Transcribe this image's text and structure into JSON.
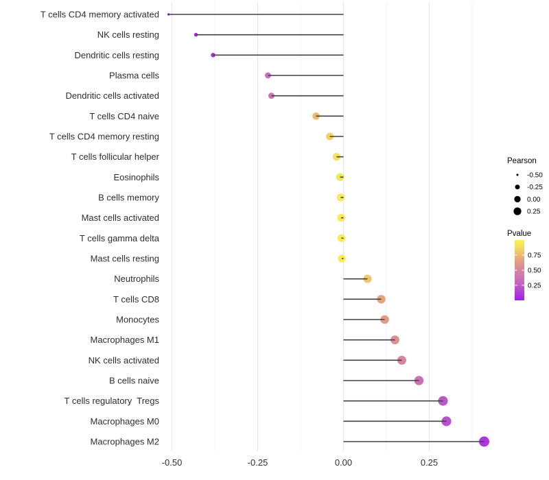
{
  "chart_data": {
    "type": "lollipop",
    "title": "",
    "xlabel": "",
    "ylabel": "",
    "xlim": [
      -0.556,
      0.456
    ],
    "grid": {
      "major_values": [
        -0.5,
        -0.25,
        0.0,
        0.25
      ],
      "minor_values": [
        -0.375,
        -0.125,
        0.125,
        0.375
      ]
    },
    "x_axis": {
      "ticks": [
        {
          "value": -0.5,
          "label": "-0.50"
        },
        {
          "value": -0.25,
          "label": "-0.25"
        },
        {
          "value": 0.0,
          "label": "0.00"
        },
        {
          "value": 0.25,
          "label": "0.25"
        }
      ]
    },
    "rows": [
      {
        "label": "T cells CD4 memory activated",
        "pearson": -0.51,
        "pvalue": 0.02
      },
      {
        "label": "NK cells resting",
        "pearson": -0.43,
        "pvalue": 0.05
      },
      {
        "label": "Dendritic cells resting",
        "pearson": -0.38,
        "pvalue": 0.08
      },
      {
        "label": "Plasma cells",
        "pearson": -0.22,
        "pvalue": 0.35
      },
      {
        "label": "Dendritic cells activated",
        "pearson": -0.21,
        "pvalue": 0.37
      },
      {
        "label": "T cells CD4 naive",
        "pearson": -0.08,
        "pvalue": 0.75
      },
      {
        "label": "T cells CD4 memory resting",
        "pearson": -0.04,
        "pvalue": 0.85
      },
      {
        "label": "T cells follicular helper",
        "pearson": -0.02,
        "pvalue": 0.9
      },
      {
        "label": "Eosinophils",
        "pearson": -0.01,
        "pvalue": 0.93
      },
      {
        "label": "B cells memory",
        "pearson": -0.008,
        "pvalue": 0.95
      },
      {
        "label": "Mast cells activated",
        "pearson": -0.007,
        "pvalue": 0.95
      },
      {
        "label": "T cells gamma delta",
        "pearson": -0.006,
        "pvalue": 0.96
      },
      {
        "label": "Mast cells resting",
        "pearson": -0.005,
        "pvalue": 0.97
      },
      {
        "label": "Neutrophils",
        "pearson": 0.07,
        "pvalue": 0.8
      },
      {
        "label": "T cells CD8",
        "pearson": 0.11,
        "pvalue": 0.67
      },
      {
        "label": "Monocytes",
        "pearson": 0.12,
        "pvalue": 0.64
      },
      {
        "label": "Macrophages M1",
        "pearson": 0.15,
        "pvalue": 0.56
      },
      {
        "label": "NK cells activated",
        "pearson": 0.17,
        "pvalue": 0.5
      },
      {
        "label": "B cells naive",
        "pearson": 0.22,
        "pvalue": 0.36
      },
      {
        "label": "T cells regulatory  Tregs",
        "pearson": 0.29,
        "pvalue": 0.22
      },
      {
        "label": "Macrophages M0",
        "pearson": 0.3,
        "pvalue": 0.2
      },
      {
        "label": "Macrophages M2",
        "pearson": 0.41,
        "pvalue": 0.1
      }
    ],
    "legend": {
      "position": "right",
      "size": {
        "title": "Pearson",
        "entries": [
          {
            "value": -0.5,
            "label": "-0.50"
          },
          {
            "value": -0.25,
            "label": "-0.25"
          },
          {
            "value": 0.0,
            "label": "0.00"
          },
          {
            "value": 0.25,
            "label": "0.25"
          }
        ]
      },
      "color": {
        "title": "Pvalue",
        "range": [
          0,
          1
        ],
        "ticks": [
          {
            "value": 0.75,
            "label": "0.75"
          },
          {
            "value": 0.5,
            "label": "0.50"
          },
          {
            "value": 0.25,
            "label": "0.25"
          }
        ]
      }
    },
    "colors": {
      "gradient_stops": [
        {
          "p": 0.0,
          "color": "#A21FEE"
        },
        {
          "p": 0.12,
          "color": "#AF3BDC"
        },
        {
          "p": 0.25,
          "color": "#C05FC6"
        },
        {
          "p": 0.4,
          "color": "#CE78B0"
        },
        {
          "p": 0.52,
          "color": "#D8889B"
        },
        {
          "p": 0.64,
          "color": "#E49C85"
        },
        {
          "p": 0.76,
          "color": "#EDBB72"
        },
        {
          "p": 0.88,
          "color": "#F3DC60"
        },
        {
          "p": 1.0,
          "color": "#FAF44E"
        }
      ],
      "stick": "#404040",
      "grid_major": "#E7E7E7",
      "grid_minor": "#F3F3F3",
      "axis_text": "#2e2e2e",
      "legend_dot": "#000000",
      "background": "#ffffff"
    }
  }
}
